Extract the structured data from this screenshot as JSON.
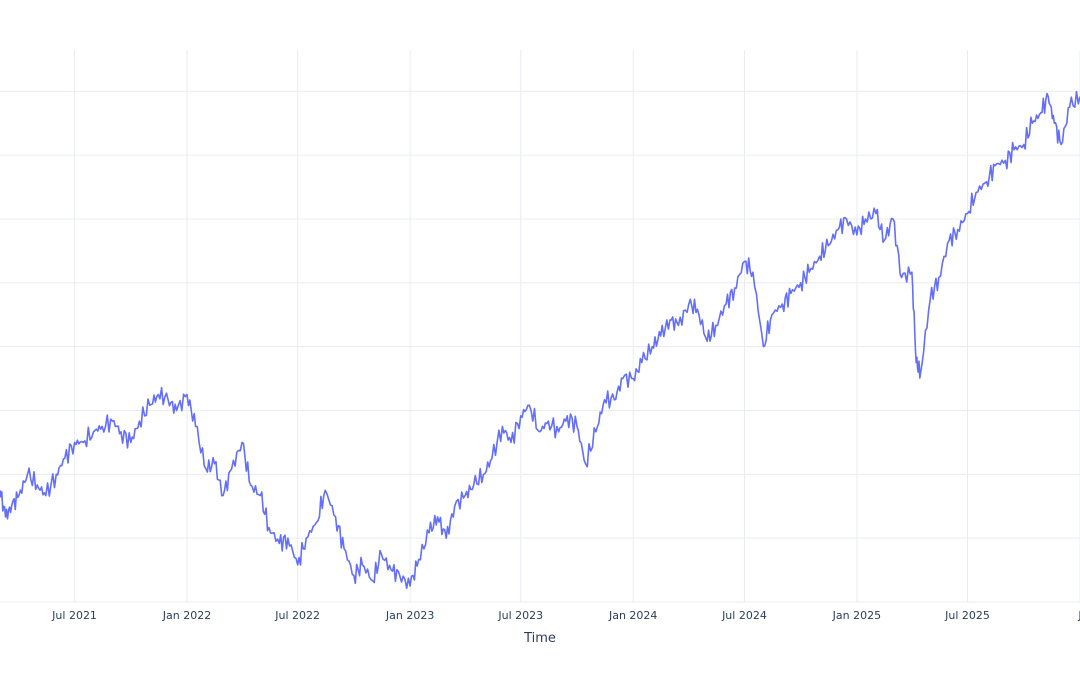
{
  "chart_data": {
    "type": "line",
    "xlabel": "Time",
    "ylabel": "",
    "x_range": [
      "2021-03-01",
      "2026-01-01"
    ],
    "y_range": [
      0,
      1
    ],
    "grid": true,
    "x_ticks": [
      {
        "date": "2021-07-01",
        "label": "Jul 2021"
      },
      {
        "date": "2022-01-01",
        "label": "Jan 2022"
      },
      {
        "date": "2022-07-01",
        "label": "Jul 2022"
      },
      {
        "date": "2023-01-01",
        "label": "Jan 2023"
      },
      {
        "date": "2023-07-01",
        "label": "Jul 2023"
      },
      {
        "date": "2024-01-01",
        "label": "Jan 2024"
      },
      {
        "date": "2024-07-01",
        "label": "Jul 2024"
      },
      {
        "date": "2025-01-01",
        "label": "Jan 2025"
      },
      {
        "date": "2025-07-01",
        "label": "Jul 2025"
      },
      {
        "date": "2026-01-01",
        "label": "J"
      }
    ],
    "y_gridlines": [
      0.0,
      0.12,
      0.24,
      0.36,
      0.48,
      0.6,
      0.72,
      0.84,
      0.96
    ],
    "series": [
      {
        "color": "#636efa",
        "x": [
          "2021-03-01",
          "2021-03-10",
          "2021-03-20",
          "2021-04-01",
          "2021-04-15",
          "2021-05-01",
          "2021-05-15",
          "2021-06-01",
          "2021-06-15",
          "2021-07-01",
          "2021-07-15",
          "2021-08-01",
          "2021-08-15",
          "2021-09-01",
          "2021-09-15",
          "2021-10-01",
          "2021-10-15",
          "2021-11-01",
          "2021-11-15",
          "2021-12-01",
          "2021-12-15",
          "2022-01-01",
          "2022-01-15",
          "2022-02-01",
          "2022-02-15",
          "2022-03-01",
          "2022-03-15",
          "2022-04-01",
          "2022-04-15",
          "2022-05-01",
          "2022-05-15",
          "2022-06-01",
          "2022-06-15",
          "2022-07-01",
          "2022-07-15",
          "2022-08-01",
          "2022-08-15",
          "2022-09-01",
          "2022-09-15",
          "2022-10-01",
          "2022-10-15",
          "2022-11-01",
          "2022-11-15",
          "2022-12-01",
          "2022-12-15",
          "2023-01-01",
          "2023-01-15",
          "2023-02-01",
          "2023-02-15",
          "2023-03-01",
          "2023-03-15",
          "2023-04-01",
          "2023-04-15",
          "2023-05-01",
          "2023-05-15",
          "2023-06-01",
          "2023-06-15",
          "2023-07-01",
          "2023-07-15",
          "2023-08-01",
          "2023-08-15",
          "2023-09-01",
          "2023-09-15",
          "2023-10-01",
          "2023-10-15",
          "2023-11-01",
          "2023-11-15",
          "2023-12-01",
          "2023-12-15",
          "2024-01-01",
          "2024-01-15",
          "2024-02-01",
          "2024-02-15",
          "2024-03-01",
          "2024-03-15",
          "2024-04-01",
          "2024-04-15",
          "2024-05-01",
          "2024-05-15",
          "2024-06-01",
          "2024-06-15",
          "2024-07-01",
          "2024-07-15",
          "2024-08-01",
          "2024-08-15",
          "2024-09-01",
          "2024-09-15",
          "2024-10-01",
          "2024-10-15",
          "2024-11-01",
          "2024-11-15",
          "2024-12-01",
          "2024-12-15",
          "2025-01-01",
          "2025-01-15",
          "2025-02-01",
          "2025-02-15",
          "2025-03-01",
          "2025-03-15",
          "2025-04-01",
          "2025-04-08",
          "2025-04-15",
          "2025-05-01",
          "2025-05-15",
          "2025-06-01",
          "2025-06-15",
          "2025-07-01",
          "2025-07-15",
          "2025-08-01",
          "2025-08-15",
          "2025-09-01",
          "2025-09-15",
          "2025-10-01",
          "2025-10-15",
          "2025-10-29",
          "2025-11-10",
          "2025-11-20",
          "2025-12-01",
          "2025-12-15",
          "2026-01-01"
        ],
        "y": [
          0.21,
          0.16,
          0.18,
          0.2,
          0.24,
          0.22,
          0.2,
          0.24,
          0.27,
          0.3,
          0.3,
          0.32,
          0.33,
          0.34,
          0.32,
          0.3,
          0.34,
          0.37,
          0.39,
          0.38,
          0.36,
          0.39,
          0.33,
          0.25,
          0.26,
          0.2,
          0.25,
          0.3,
          0.22,
          0.2,
          0.14,
          0.11,
          0.12,
          0.07,
          0.12,
          0.15,
          0.21,
          0.16,
          0.1,
          0.05,
          0.07,
          0.04,
          0.09,
          0.06,
          0.05,
          0.03,
          0.08,
          0.13,
          0.16,
          0.12,
          0.18,
          0.2,
          0.22,
          0.24,
          0.27,
          0.33,
          0.3,
          0.35,
          0.37,
          0.32,
          0.34,
          0.32,
          0.35,
          0.33,
          0.26,
          0.32,
          0.38,
          0.38,
          0.42,
          0.42,
          0.45,
          0.48,
          0.5,
          0.53,
          0.52,
          0.56,
          0.55,
          0.49,
          0.52,
          0.56,
          0.59,
          0.64,
          0.62,
          0.48,
          0.54,
          0.56,
          0.58,
          0.6,
          0.62,
          0.65,
          0.67,
          0.7,
          0.72,
          0.69,
          0.72,
          0.73,
          0.68,
          0.72,
          0.61,
          0.62,
          0.45,
          0.43,
          0.57,
          0.61,
          0.68,
          0.7,
          0.73,
          0.77,
          0.79,
          0.82,
          0.83,
          0.85,
          0.86,
          0.9,
          0.92,
          0.95,
          0.9,
          0.86,
          0.93,
          0.95
        ]
      }
    ]
  }
}
